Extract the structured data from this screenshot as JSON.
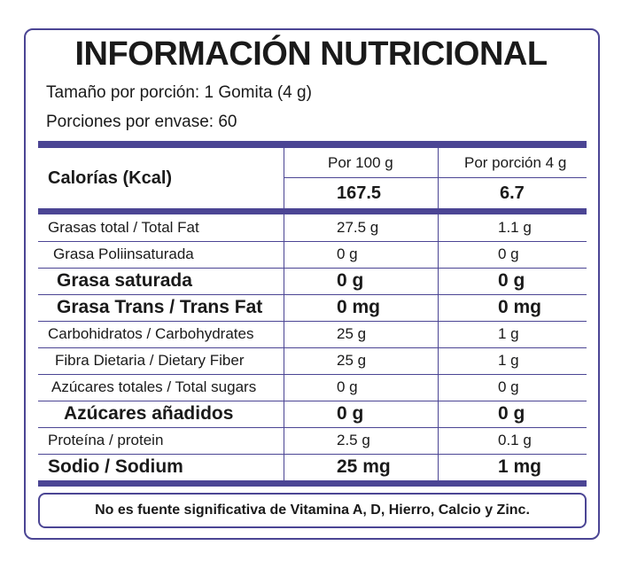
{
  "title": "INFORMACIÓN NUTRICIONAL",
  "serving_size": "Tamaño por porción:  1 Gomita (4 g)",
  "servings_per_container": "Porciones por envase: 60",
  "header": {
    "calories_label": "Calorías (Kcal)",
    "col1_label": "Por 100 g",
    "col2_label": "Por porción 4 g",
    "col1_value": "167.5",
    "col2_value": "6.7"
  },
  "rows": [
    {
      "label": "Grasas total  / Total Fat",
      "per100": "27.5 g",
      "perServing": "1.1 g"
    },
    {
      "label": "Grasa Poliinsaturada",
      "per100": "0 g",
      "perServing": "0 g"
    },
    {
      "label": "Grasa saturada",
      "per100": "0 g",
      "perServing": "0 g"
    },
    {
      "label": "Grasa Trans / Trans Fat",
      "per100": "0 mg",
      "perServing": "0 mg"
    },
    {
      "label": "Carbohidratos / Carbohydrates",
      "per100": "25 g",
      "perServing": "1 g"
    },
    {
      "label": "Fibra Dietaria / Dietary Fiber",
      "per100": "25 g",
      "perServing": "1 g"
    },
    {
      "label": "Azúcares totales / Total sugars",
      "per100": "0 g",
      "perServing": "0 g"
    },
    {
      "label": "Azúcares añadidos",
      "per100": "0 g",
      "perServing": "0 g"
    },
    {
      "label": "Proteína / protein",
      "per100": "2.5 g",
      "perServing": "0.1 g"
    },
    {
      "label": "Sodio / Sodium",
      "per100": "25 mg",
      "perServing": "1 mg"
    }
  ],
  "footnote": "No es fuente significativa de Vitamina A, D,  Hierro, Calcio y Zinc.",
  "colors": {
    "accent": "#4b4594"
  }
}
